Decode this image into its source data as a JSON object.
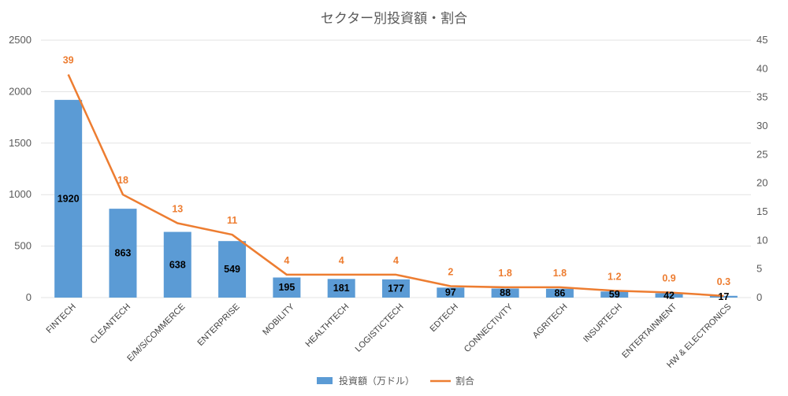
{
  "chart_data": {
    "type": "bar",
    "title": "セクター別投資額・割合",
    "categories": [
      "FINTECH",
      "CLEANTECH",
      "E/M/S/COMMERCE",
      "ENTERPRISE",
      "MOBILITY",
      "HEALTHTECH",
      "LOGISTICTECH",
      "EDTECH",
      "CONNECTIVITY",
      "AGRITECH",
      "INSURTECH",
      "ENTERTAINMENT",
      "HW & ELECTRONICS"
    ],
    "series": [
      {
        "name": "投資額（万ドル）",
        "type": "bar",
        "axis": "left",
        "color": "#5B9BD5",
        "values": [
          1920,
          863,
          638,
          549,
          195,
          181,
          177,
          97,
          88,
          86,
          59,
          42,
          17
        ],
        "labels": [
          "1920",
          "863",
          "638",
          "549",
          "195",
          "181",
          "177",
          "97",
          "88",
          "86",
          "59",
          "42",
          "17"
        ]
      },
      {
        "name": "割合",
        "type": "line",
        "axis": "right",
        "color": "#ED7D31",
        "values": [
          39,
          18,
          13,
          11,
          4,
          4,
          4,
          2,
          1.8,
          1.8,
          1.2,
          0.9,
          0.3
        ],
        "labels": [
          "39",
          "18",
          "13",
          "11",
          "4",
          "4",
          "4",
          "2",
          "1.8",
          "1.8",
          "1.2",
          "0.9",
          "0.3"
        ]
      }
    ],
    "ylim": [
      0,
      2500
    ],
    "yticks": [
      "0",
      "500",
      "1000",
      "1500",
      "2000",
      "2500"
    ],
    "y2lim": [
      0,
      45
    ],
    "y2ticks": [
      "0",
      "5",
      "10",
      "15",
      "20",
      "25",
      "30",
      "35",
      "40",
      "45"
    ],
    "grid": true,
    "legend": "bottom"
  }
}
